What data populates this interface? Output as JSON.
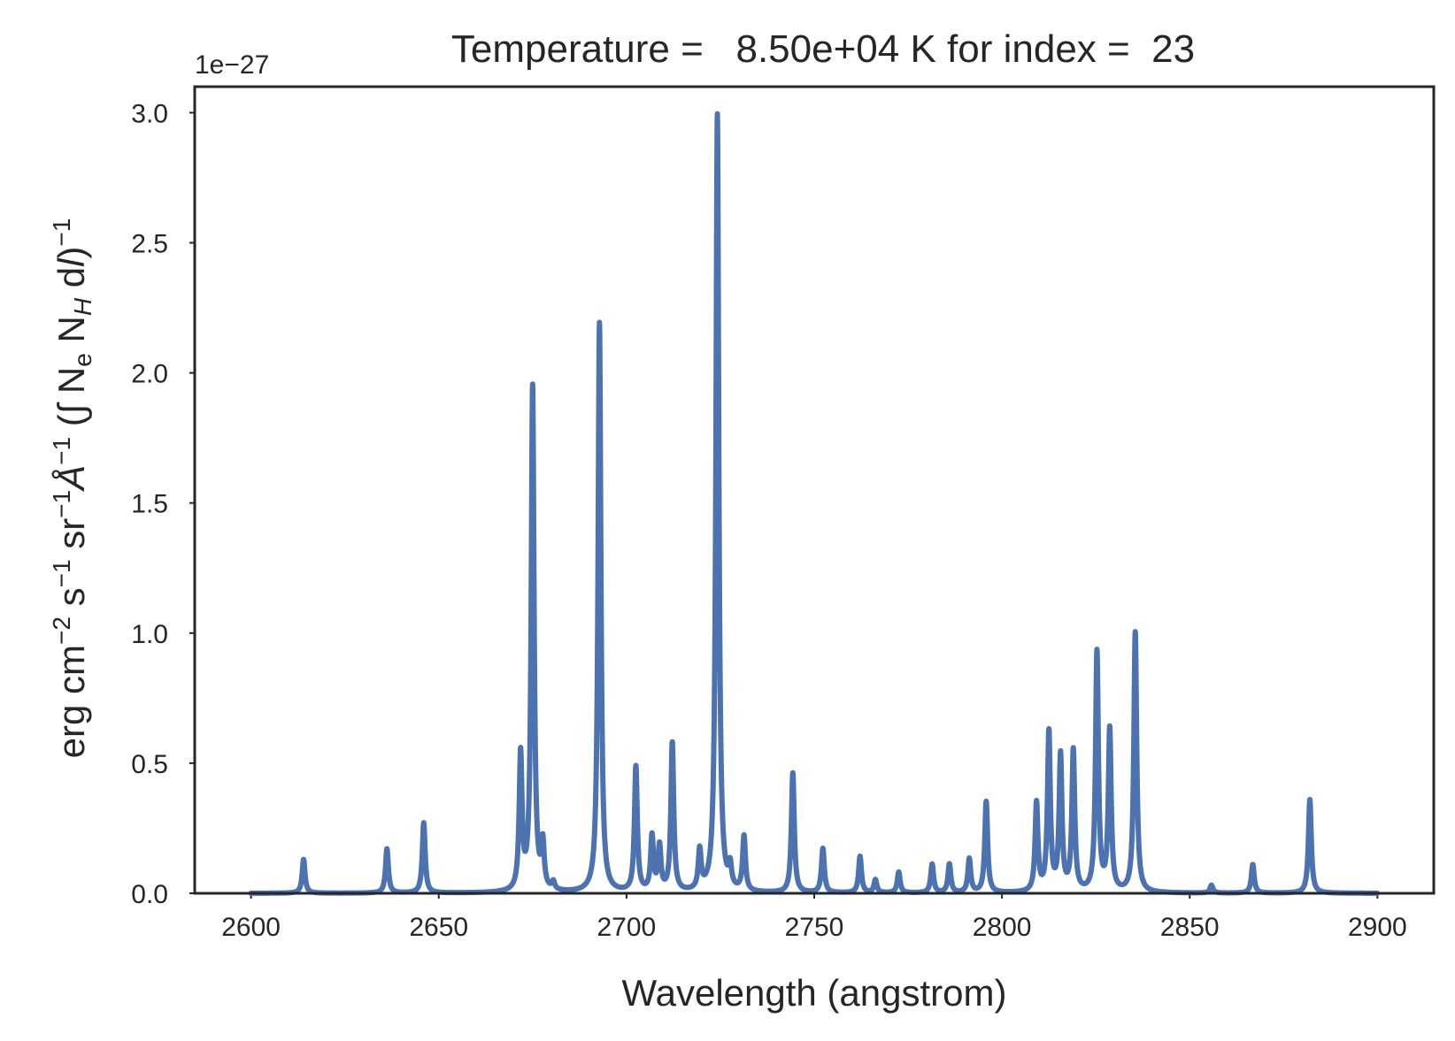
{
  "chart_data": {
    "type": "line",
    "title": "Temperature =   8.50e+04 K for index =  23",
    "xlabel": "Wavelength (angstrom)",
    "ylabel": "erg cm⁻² s⁻¹ sr⁻¹ Å⁻¹ (∫ Nₑ Nₕ dl)⁻¹",
    "y_offset_label": "1e−27",
    "y_scale": 1e-27,
    "xlim": [
      2585,
      2915
    ],
    "ylim": [
      0,
      3.1
    ],
    "xticks": [
      2600,
      2650,
      2700,
      2750,
      2800,
      2850,
      2900
    ],
    "xtick_labels": [
      "2600",
      "2650",
      "2700",
      "2750",
      "2800",
      "2850",
      "2900"
    ],
    "yticks": [
      0.0,
      0.5,
      1.0,
      1.5,
      2.0,
      2.5,
      3.0
    ],
    "ytick_labels": [
      "0.0",
      "0.5",
      "1.0",
      "1.5",
      "2.0",
      "2.5",
      "3.0"
    ],
    "grid": false,
    "x_range": [
      2600,
      2900
    ],
    "line_width_angstrom": 0.45,
    "peaks": [
      {
        "x": 2614.0,
        "y": 0.13
      },
      {
        "x": 2636.2,
        "y": 0.17
      },
      {
        "x": 2646.0,
        "y": 0.27
      },
      {
        "x": 2671.8,
        "y": 0.52
      },
      {
        "x": 2675.0,
        "y": 1.94
      },
      {
        "x": 2677.7,
        "y": 0.17
      },
      {
        "x": 2680.5,
        "y": 0.03
      },
      {
        "x": 2692.8,
        "y": 2.19
      },
      {
        "x": 2702.5,
        "y": 0.48
      },
      {
        "x": 2706.8,
        "y": 0.21
      },
      {
        "x": 2708.8,
        "y": 0.17
      },
      {
        "x": 2712.2,
        "y": 0.57
      },
      {
        "x": 2719.5,
        "y": 0.15
      },
      {
        "x": 2724.2,
        "y": 2.99
      },
      {
        "x": 2727.6,
        "y": 0.08
      },
      {
        "x": 2731.3,
        "y": 0.21
      },
      {
        "x": 2744.3,
        "y": 0.46
      },
      {
        "x": 2752.3,
        "y": 0.17
      },
      {
        "x": 2762.2,
        "y": 0.14
      },
      {
        "x": 2766.3,
        "y": 0.05
      },
      {
        "x": 2772.5,
        "y": 0.08
      },
      {
        "x": 2781.4,
        "y": 0.11
      },
      {
        "x": 2786.0,
        "y": 0.11
      },
      {
        "x": 2791.3,
        "y": 0.13
      },
      {
        "x": 2795.8,
        "y": 0.35
      },
      {
        "x": 2809.2,
        "y": 0.34
      },
      {
        "x": 2812.5,
        "y": 0.61
      },
      {
        "x": 2815.6,
        "y": 0.52
      },
      {
        "x": 2819.0,
        "y": 0.54
      },
      {
        "x": 2825.3,
        "y": 0.92
      },
      {
        "x": 2828.7,
        "y": 0.62
      },
      {
        "x": 2835.5,
        "y": 1.0
      },
      {
        "x": 2855.8,
        "y": 0.03
      },
      {
        "x": 2866.8,
        "y": 0.11
      },
      {
        "x": 2882.0,
        "y": 0.36
      }
    ],
    "series": [
      {
        "color": "#4c72b0"
      }
    ]
  }
}
